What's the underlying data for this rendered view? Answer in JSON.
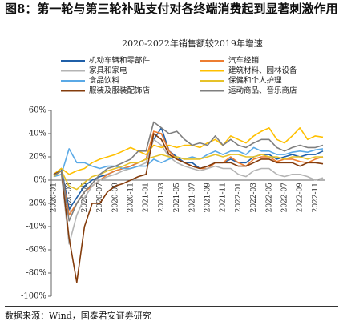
{
  "header": {
    "title": "图8：第一轮与第三轮补贴支付对各终端消费起到显著刺激作用"
  },
  "chart_data": {
    "type": "line",
    "title": "2020-2022年销售额较2019年增速",
    "categories": [
      "2020-01",
      null,
      "2020-03",
      null,
      "2020-05",
      null,
      "2020-07",
      null,
      "2020-09",
      null,
      "2020-11",
      null,
      "2021-01",
      null,
      "2021-03",
      null,
      "2021-05",
      null,
      "2021-07",
      null,
      "2021-09",
      null,
      "2021-11",
      null,
      "2022-01",
      null,
      "2022-03",
      null,
      "2022-05",
      null,
      "2022-07",
      null,
      "2022-09",
      null,
      "2022-11",
      null
    ],
    "ylim": [
      -100,
      60
    ],
    "yticks": [
      {
        "value": -100,
        "label": "-100%"
      },
      {
        "value": -80,
        "label": "-80%"
      },
      {
        "value": -60,
        "label": "-60%"
      },
      {
        "value": -40,
        "label": "-40%"
      },
      {
        "value": -20,
        "label": "-20%"
      },
      {
        "value": 0,
        "label": "0%"
      },
      {
        "value": 20,
        "label": "20%"
      },
      {
        "value": 40,
        "label": "40%"
      },
      {
        "value": 60,
        "label": "60%"
      }
    ],
    "grid": false,
    "series": [
      {
        "name": "机动车辆和零部件",
        "color": "#1f5fa8",
        "values": [
          5,
          10,
          -25,
          -15,
          -5,
          0,
          3,
          5,
          8,
          10,
          12,
          15,
          18,
          35,
          45,
          25,
          20,
          15,
          15,
          10,
          12,
          15,
          15,
          18,
          15,
          15,
          20,
          22,
          22,
          18,
          20,
          22,
          20,
          22,
          22,
          25
        ]
      },
      {
        "name": "汽车经销",
        "color": "#ed7d31",
        "values": [
          5,
          8,
          -30,
          -20,
          -10,
          -5,
          0,
          5,
          8,
          10,
          12,
          15,
          18,
          42,
          40,
          25,
          18,
          15,
          12,
          10,
          10,
          15,
          15,
          20,
          15,
          12,
          18,
          20,
          20,
          16,
          18,
          18,
          16,
          15,
          18,
          20
        ]
      },
      {
        "name": "家具和家电",
        "color": "#b4b4b4",
        "values": [
          3,
          5,
          -55,
          -30,
          -15,
          -5,
          0,
          3,
          5,
          8,
          10,
          12,
          15,
          35,
          30,
          20,
          15,
          12,
          10,
          8,
          10,
          12,
          10,
          10,
          5,
          3,
          8,
          10,
          10,
          5,
          3,
          5,
          5,
          3,
          0,
          2
        ]
      },
      {
        "name": "建筑材料、园林设备",
        "color": "#ffc000",
        "values": [
          5,
          10,
          5,
          8,
          10,
          15,
          18,
          20,
          22,
          25,
          28,
          25,
          22,
          30,
          28,
          30,
          28,
          30,
          30,
          28,
          32,
          35,
          30,
          38,
          35,
          32,
          38,
          42,
          45,
          35,
          32,
          38,
          45,
          35,
          38,
          37
        ]
      },
      {
        "name": "食品饮料",
        "color": "#5aa9e6",
        "values": [
          3,
          5,
          27,
          15,
          15,
          12,
          10,
          12,
          12,
          10,
          10,
          12,
          12,
          18,
          15,
          18,
          20,
          18,
          20,
          18,
          22,
          25,
          22,
          25,
          25,
          22,
          28,
          25,
          25,
          22,
          22,
          24,
          25,
          24,
          26,
          27
        ]
      },
      {
        "name": "保健和个人护理",
        "color": "#e6c229",
        "values": [
          3,
          8,
          -5,
          -8,
          -2,
          3,
          5,
          8,
          10,
          12,
          15,
          15,
          18,
          20,
          22,
          20,
          20,
          18,
          18,
          18,
          20,
          22,
          20,
          22,
          22,
          20,
          20,
          22,
          20,
          20,
          18,
          20,
          20,
          18,
          20,
          20
        ]
      },
      {
        "name": "服装及服装配饰店",
        "color": "#843c0c",
        "values": [
          5,
          8,
          -50,
          -88,
          -40,
          -20,
          -20,
          -10,
          -5,
          -3,
          0,
          3,
          5,
          40,
          35,
          22,
          18,
          15,
          12,
          10,
          12,
          15,
          15,
          15,
          12,
          12,
          15,
          18,
          18,
          15,
          15,
          15,
          12,
          15,
          15,
          14
        ]
      },
      {
        "name": "运动商品、音乐商店",
        "color": "#7f7f7f",
        "values": [
          4,
          8,
          -35,
          -20,
          -10,
          -3,
          5,
          10,
          12,
          15,
          18,
          25,
          25,
          50,
          45,
          40,
          42,
          35,
          30,
          32,
          30,
          38,
          30,
          35,
          30,
          28,
          32,
          35,
          35,
          28,
          25,
          28,
          30,
          28,
          28,
          30
        ]
      }
    ]
  },
  "footer": {
    "source": "数据来源：Wind，国泰君安证券研究"
  }
}
